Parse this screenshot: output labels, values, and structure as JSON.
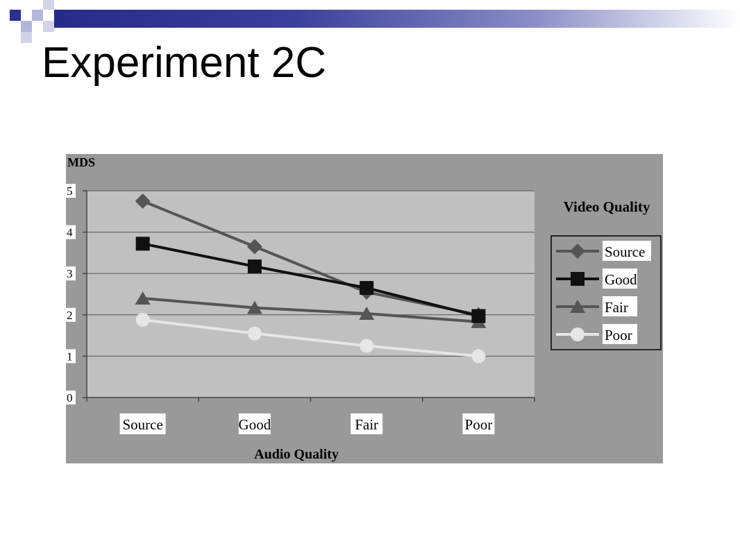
{
  "slide": {
    "title": "Experiment 2C"
  },
  "colors": {
    "chart_background": "#999999",
    "plot_background": "#c0c0c0",
    "header_bar_dark": "#2b2f8f",
    "header_square_light": "#b4b6dc"
  },
  "chart_data": {
    "type": "line",
    "ylabel": "MDS",
    "xlabel": "Audio Quality",
    "legend_title": "Video Quality",
    "legend_position": "right",
    "grid": true,
    "categories": [
      "Source",
      "Good",
      "Fair",
      "Poor"
    ],
    "yticks": [
      "0",
      "1",
      "2",
      "3",
      "4",
      "5"
    ],
    "ylim": [
      0,
      5
    ],
    "series": [
      {
        "name": "Source",
        "marker": "diamond",
        "color": "#555555",
        "values": [
          4.75,
          3.65,
          2.55,
          2.0
        ]
      },
      {
        "name": "Good",
        "marker": "square",
        "color": "#111111",
        "values": [
          3.72,
          3.17,
          2.65,
          1.97
        ]
      },
      {
        "name": "Fair",
        "marker": "triangle",
        "color": "#555555",
        "values": [
          2.4,
          2.17,
          2.03,
          1.83
        ]
      },
      {
        "name": "Poor",
        "marker": "circle",
        "color": "#e6e6e6",
        "values": [
          1.88,
          1.55,
          1.25,
          1.0
        ]
      }
    ]
  }
}
